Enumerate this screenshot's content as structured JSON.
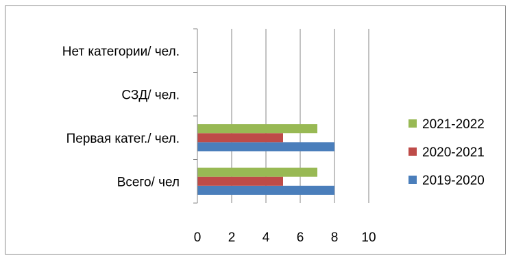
{
  "chart_data": {
    "type": "bar",
    "orientation": "horizontal",
    "categories": [
      "Всего/ чел",
      "Первая катег./ чел.",
      "СЗД/ чел.",
      "Нет категории/ чел."
    ],
    "series": [
      {
        "name": "2019-2020",
        "color": "#4a7ebb",
        "values": [
          8,
          8,
          0,
          0
        ]
      },
      {
        "name": "2020-2021",
        "color": "#be4b48",
        "values": [
          5,
          5,
          0,
          0
        ]
      },
      {
        "name": "2021-2022",
        "color": "#98b954",
        "values": [
          7,
          7,
          0,
          0
        ]
      }
    ],
    "x_ticks": [
      "0",
      "2",
      "4",
      "6",
      "8",
      "10"
    ],
    "xlim": [
      0,
      10
    ],
    "grid": "vertical",
    "legend_position": "right",
    "legend_order": [
      "2021-2022",
      "2020-2021",
      "2019-2020"
    ],
    "title": "",
    "xlabel": "",
    "ylabel": ""
  }
}
